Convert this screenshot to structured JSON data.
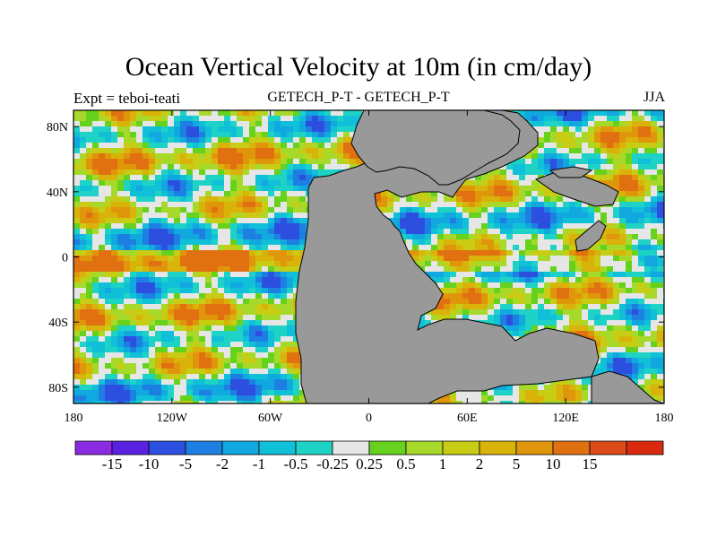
{
  "title": "Ocean Vertical Velocity at 10m (in cm/day)",
  "subtitle_left": "Expt = teboi-teati",
  "subtitle_center": "GETECH_P-T - GETECH_P-T",
  "subtitle_right": "JJA",
  "map": {
    "projection": "cylindrical-equidistant",
    "lon_range": [
      -180,
      180
    ],
    "lat_range": [
      -90,
      90
    ],
    "lat_ticks": [
      {
        "value": 80,
        "label": "80N"
      },
      {
        "value": 40,
        "label": "40N"
      },
      {
        "value": 0,
        "label": "0"
      },
      {
        "value": -40,
        "label": "40S"
      },
      {
        "value": -80,
        "label": "80S"
      }
    ],
    "lon_ticks": [
      {
        "value": -180,
        "label": "180"
      },
      {
        "value": -120,
        "label": "120W"
      },
      {
        "value": -60,
        "label": "60W"
      },
      {
        "value": 0,
        "label": "0"
      },
      {
        "value": 60,
        "label": "60E"
      },
      {
        "value": 120,
        "label": "120E"
      },
      {
        "value": 180,
        "label": "180"
      }
    ],
    "land_color": "#999999"
  },
  "colorbar": {
    "colors": [
      "#8a2be2",
      "#5a21e0",
      "#2d4fe0",
      "#1e7fe3",
      "#11a8e0",
      "#10c0d8",
      "#1ed3c6",
      "#e6e6e6",
      "#66d21e",
      "#a6d92a",
      "#c8cc14",
      "#d9b30a",
      "#e0960a",
      "#e07010",
      "#dd4a1a",
      "#d92a10"
    ],
    "labels": [
      "-15",
      "-10",
      "-5",
      "-2",
      "-1",
      "-0.5",
      "-0.25",
      "0.25",
      "0.5",
      "1",
      "2",
      "5",
      "10",
      "15"
    ]
  },
  "chart_data": {
    "type": "heatmap",
    "title": "Ocean Vertical Velocity at 10m (in cm/day)",
    "variable": "vertical velocity at 10m",
    "units": "cm/day",
    "season": "JJA",
    "x_range": [
      -180,
      180
    ],
    "y_range": [
      -90,
      90
    ],
    "levels": [
      -15,
      -10,
      -5,
      -2,
      -1,
      -0.5,
      -0.25,
      0.25,
      0.5,
      1,
      2,
      5,
      10,
      15
    ]
  }
}
